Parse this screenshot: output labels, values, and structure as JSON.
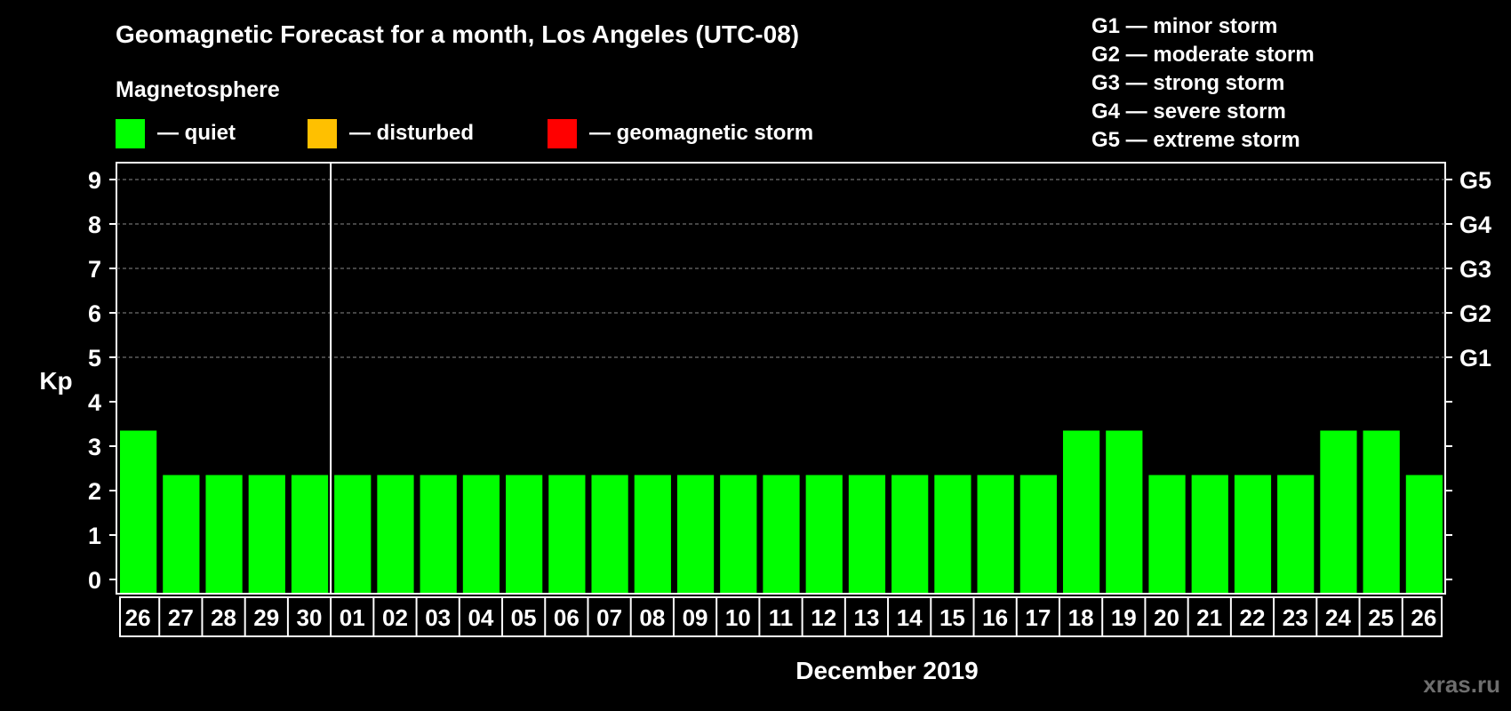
{
  "chart_data": {
    "type": "bar",
    "title": "Geomagnetic Forecast for a month, Los Angeles (UTC-08)",
    "legend_title": "Magnetosphere",
    "legend": [
      {
        "label": "— quiet",
        "color": "#00ff00"
      },
      {
        "label": "— disturbed",
        "color": "#ffc000"
      },
      {
        "label": "— geomagnetic storm",
        "color": "#ff0000"
      }
    ],
    "storm_scale": [
      "G1 — minor storm",
      "G2 — moderate storm",
      "G3 — strong storm",
      "G4 — severe storm",
      "G5 — extreme storm"
    ],
    "ylabel": "Kp",
    "xlabel": "December 2019",
    "ylim": [
      0,
      9
    ],
    "yticks": [
      0,
      1,
      2,
      3,
      4,
      5,
      6,
      7,
      8,
      9
    ],
    "right_axis": [
      {
        "kp": 5,
        "label": "G1"
      },
      {
        "kp": 6,
        "label": "G2"
      },
      {
        "kp": 7,
        "label": "G3"
      },
      {
        "kp": 8,
        "label": "G4"
      },
      {
        "kp": 9,
        "label": "G5"
      }
    ],
    "categories": [
      "26",
      "27",
      "28",
      "29",
      "30",
      "01",
      "02",
      "03",
      "04",
      "05",
      "06",
      "07",
      "08",
      "09",
      "10",
      "11",
      "12",
      "13",
      "14",
      "15",
      "16",
      "17",
      "18",
      "19",
      "20",
      "21",
      "22",
      "23",
      "24",
      "25",
      "26"
    ],
    "values": [
      3,
      2,
      2,
      2,
      2,
      2,
      2,
      2,
      2,
      2,
      2,
      2,
      2,
      2,
      2,
      2,
      2,
      2,
      2,
      2,
      2,
      2,
      3,
      3,
      2,
      2,
      2,
      2,
      3,
      3,
      2
    ],
    "month_divider_after_index": 4,
    "bar_color": "#00ff00",
    "grid_color": "#8a8a8a"
  },
  "watermark": "xras.ru"
}
